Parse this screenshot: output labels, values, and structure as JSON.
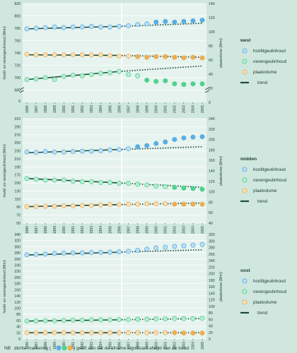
{
  "colors": {
    "background": "#cfe7de",
    "plot_background": "#e6f3ee",
    "grid": "#ffffff",
    "hoofd": "#5aaee2",
    "nevengeul": "#4fd28f",
    "plaat": "#ecae52",
    "trend": "#1e4a3a",
    "text": "#1e3a33"
  },
  "footnote": {
    "prefix": "NB",
    "text_before": "dichte markering (",
    "text_after": ") geeft aan dat de afname significant afwijkt van de trend"
  },
  "chart_data": [
    {
      "type": "scatter",
      "region": "west",
      "x": [
        1986,
        1987,
        1988,
        1989,
        1990,
        1991,
        1992,
        1993,
        1994,
        1995,
        1996,
        1997,
        1998,
        1999,
        2000,
        2001,
        2002,
        2003,
        2004,
        2005
      ],
      "ylabel": "hoofd- en nevengeulinhoud (Mm³)",
      "y2label": "plaatvolume (Mm³)",
      "yticks": [
        "820",
        "800",
        "780",
        "760",
        "740",
        "720",
        "700",
        "680",
        "0"
      ],
      "y2ticks": [
        "140",
        "120",
        "100",
        "80",
        "60",
        "40",
        "20",
        "0"
      ],
      "series": [
        {
          "name": "hoofdgeulinhoud",
          "color_key": "hoofd",
          "values": [
            779,
            780,
            781,
            782,
            781,
            782,
            782,
            783,
            782,
            782,
            783,
            784,
            786,
            787,
            790,
            791,
            790,
            791,
            792,
            793
          ],
          "filled_from_index": 14
        },
        {
          "name": "nevengeulinhoud",
          "color_key": "nevengeul",
          "values": [
            697,
            698,
            700,
            697,
            702,
            704,
            703,
            705,
            707,
            708,
            710,
            705,
            703,
            696,
            694,
            695,
            690,
            689,
            690,
            690
          ],
          "filled_from_index": 13
        },
        {
          "name": "plaatvolume",
          "color_key": "plaat",
          "values": [
            738,
            737,
            737,
            737,
            737,
            737,
            737,
            737,
            737,
            736,
            735,
            735,
            734,
            733,
            734,
            734,
            733,
            732,
            733,
            732
          ],
          "filled_from_index": 12
        }
      ],
      "trends": [
        {
          "fit": [
            779,
            783
          ],
          "extrapolated": [
            783,
            788
          ]
        },
        {
          "fit": [
            697,
            710
          ],
          "extrapolated": [
            710,
            719
          ]
        },
        {
          "fit": [
            737,
            736
          ],
          "extrapolated": [
            736,
            733
          ]
        }
      ]
    },
    {
      "type": "scatter",
      "region": "midden",
      "x": [
        1986,
        1987,
        1988,
        1989,
        1990,
        1991,
        1992,
        1993,
        1994,
        1995,
        1996,
        1997,
        1998,
        1999,
        2000,
        2001,
        2002,
        2003,
        2004,
        2005
      ],
      "ylabel": "hoofd- en nevengeulinhoud (Mm³)",
      "y2label": "plaatvolume (Mm³)",
      "yticks": [
        "310",
        "290",
        "270",
        "250",
        "230",
        "210",
        "190",
        "170",
        "150",
        "130",
        "110",
        "90",
        "70",
        "50"
      ],
      "y2ticks": [
        "240",
        "220",
        "200",
        "180",
        "160",
        "140",
        "120",
        "100",
        "80",
        "60",
        "40"
      ],
      "series": [
        {
          "name": "hoofdgeulinhoud",
          "color_key": "hoofd",
          "values": [
            227,
            226,
            228,
            227,
            227,
            228,
            229,
            229,
            230,
            232,
            233,
            235,
            240,
            243,
            248,
            252,
            258,
            262,
            264,
            265
          ],
          "filled_from_index": 12
        },
        {
          "name": "nevengeulinhoud",
          "color_key": "nevengeul",
          "values": [
            161,
            159,
            157,
            157,
            157,
            154,
            153,
            153,
            151,
            151,
            149,
            149,
            147,
            145,
            142,
            141,
            139,
            137,
            136,
            134
          ],
          "filled_from_index": 16
        },
        {
          "name": "plaatvolume",
          "color_key": "plaat",
          "values": [
            91,
            91,
            92,
            92,
            93,
            93,
            94,
            94,
            95,
            96,
            96,
            97,
            97,
            98,
            98,
            98,
            97,
            97,
            97,
            97
          ],
          "filled_from_index": 16
        }
      ],
      "trends": [
        {
          "fit": [
            225,
            233
          ],
          "extrapolated": [
            233,
            240
          ]
        },
        {
          "fit": [
            161,
            150
          ],
          "extrapolated": [
            150,
            139
          ]
        },
        {
          "fit": [
            91,
            96
          ],
          "extrapolated": [
            96,
            100
          ]
        }
      ]
    },
    {
      "type": "scatter",
      "region": "oost",
      "x": [
        1986,
        1987,
        1988,
        1989,
        1990,
        1991,
        1992,
        1993,
        1994,
        1995,
        1996,
        1997,
        1998,
        1999,
        2000,
        2001,
        2002,
        2003,
        2004,
        2005
      ],
      "ylabel": "hoofd- en nevengeulinhoud (Mm³)",
      "y2label": "plaatvolume (Mm³)",
      "yticks": [
        "340",
        "320",
        "300",
        "280",
        "260",
        "240",
        "220",
        "200",
        "180",
        "160",
        "140",
        "120",
        "100",
        "80",
        "60",
        "40",
        "20",
        "0"
      ],
      "y2ticks": [
        "320",
        "300",
        "280",
        "260",
        "240",
        "220",
        "200",
        "180",
        "160",
        "140",
        "120",
        "100",
        "80",
        "60",
        "40",
        "20",
        "0"
      ],
      "series": [
        {
          "name": "hoofdgeulinhoud",
          "color_key": "hoofd",
          "values": [
            274,
            275,
            276,
            278,
            279,
            280,
            280,
            281,
            281,
            282,
            283,
            285,
            288,
            292,
            296,
            298,
            301,
            303,
            305,
            307
          ],
          "filled_from_index": 99
        },
        {
          "name": "nevengeulinhoud",
          "color_key": "nevengeul",
          "values": [
            58,
            58,
            59,
            59,
            60,
            61,
            61,
            62,
            62,
            62,
            63,
            63,
            64,
            64,
            65,
            65,
            66,
            66,
            66,
            67
          ],
          "filled_from_index": 99
        },
        {
          "name": "plaatvolume",
          "color_key": "plaat",
          "values": [
            20,
            20,
            20,
            20,
            20,
            20,
            20,
            20,
            20,
            20,
            20,
            20,
            20,
            20,
            20,
            20,
            20,
            19,
            19,
            19
          ],
          "filled_from_index": 16
        }
      ],
      "trends": [
        {
          "fit": [
            273,
            282
          ],
          "extrapolated": [
            282,
            290
          ]
        },
        {
          "fit": [
            58,
            62
          ],
          "extrapolated": [
            62,
            66
          ]
        },
        {
          "fit": [
            20,
            20
          ],
          "extrapolated": [
            20,
            20
          ]
        }
      ]
    }
  ],
  "legend": {
    "items": [
      {
        "label": "hoofdgeulinhoud",
        "color_key": "hoofd"
      },
      {
        "label": "nevengeulinhoud",
        "color_key": "nevengeul"
      },
      {
        "label": "plaatvolume",
        "color_key": "plaat"
      },
      {
        "label": "trend",
        "color_key": "trend"
      }
    ]
  }
}
